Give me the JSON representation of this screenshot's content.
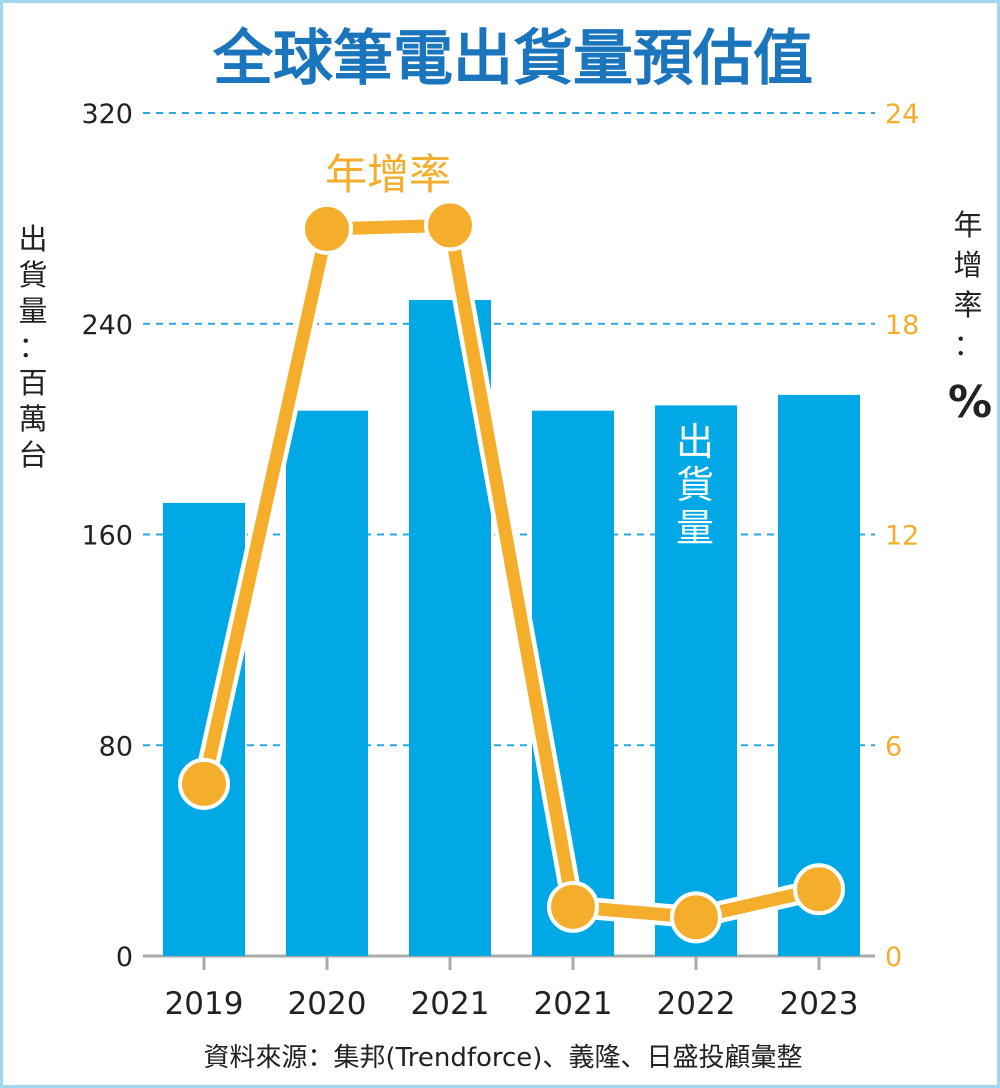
{
  "chart_data": {
    "type": "bar",
    "title": "全球筆電出貨量預估值",
    "categories": [
      "2019",
      "2020",
      "2021",
      "2021",
      "2022",
      "2023"
    ],
    "series": [
      {
        "name": "出貨量",
        "axis": "left",
        "type": "bar",
        "color": "#00a9e6",
        "values": [
          172,
          207,
          249,
          207,
          209,
          213
        ]
      },
      {
        "name": "年增率",
        "axis": "right",
        "type": "line",
        "color": "#f5ad2c",
        "values": [
          4.9,
          20.7,
          20.8,
          1.4,
          1.1,
          1.9
        ]
      }
    ],
    "ylabel": "出貨量：百萬台",
    "ylabel_right": "年增率：%",
    "ylim": [
      0,
      320
    ],
    "ylim_right": [
      0,
      24
    ],
    "yticks": [
      0,
      80,
      160,
      240,
      320
    ],
    "yticks_right": [
      0,
      6,
      12,
      18,
      24
    ],
    "grid": "dashed horizontal",
    "source": "資料來源：集邦(Trendforce)、義隆、日盛投顧彙整"
  },
  "colors": {
    "bar": "#00a9e6",
    "line": "#f5ad2c",
    "title": "#1a75bc",
    "frame": "#9fd7ee"
  }
}
